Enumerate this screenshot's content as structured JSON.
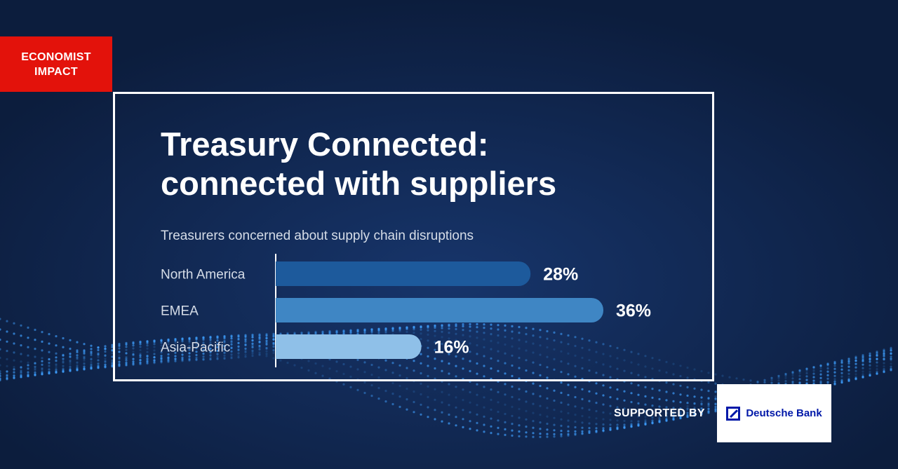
{
  "brand": {
    "line1": "ECONOMIST",
    "line2": "IMPACT"
  },
  "title": {
    "line1": "Treasury Connected:",
    "line2": "connected with suppliers"
  },
  "chart_data": {
    "type": "bar",
    "orientation": "horizontal",
    "title": "Treasurers concerned about supply chain disruptions",
    "categories": [
      "North America",
      "EMEA",
      "Asia-Pacific"
    ],
    "values": [
      28,
      36,
      16
    ],
    "value_labels": [
      "28%",
      "36%",
      "16%"
    ],
    "unit": "%",
    "colors": [
      "#1d5a9c",
      "#3f86c4",
      "#8fc0e8"
    ],
    "label_color": "#ffffff",
    "xlim": [
      0,
      36
    ],
    "grid": false,
    "legend": "none"
  },
  "sponsor": {
    "label": "SUPPORTED BY",
    "name": "Deutsche Bank",
    "icon": "deutsche-bank-logo-icon"
  },
  "colors": {
    "background": "#0c1d3d",
    "brand_red": "#e3120b",
    "db_blue": "#0018a8"
  }
}
